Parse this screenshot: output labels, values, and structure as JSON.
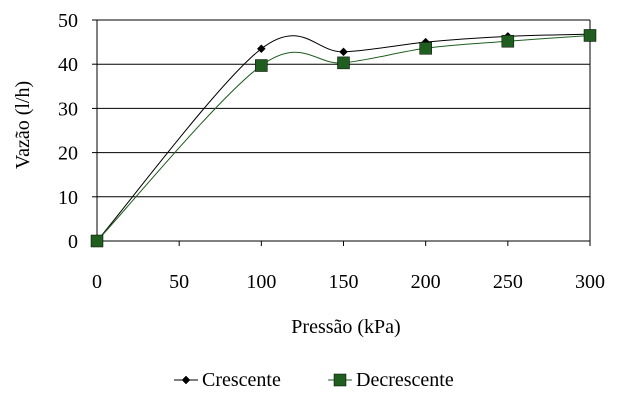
{
  "chart_data": {
    "type": "line",
    "title": "",
    "xlabel": "Pressão (kPa)",
    "ylabel": "Vazão (l/h)",
    "x": [
      0,
      100,
      150,
      200,
      250,
      300
    ],
    "xlim": [
      0,
      300
    ],
    "ylim": [
      0,
      50
    ],
    "xticks": [
      0,
      50,
      100,
      150,
      200,
      250,
      300
    ],
    "yticks": [
      0,
      10,
      20,
      30,
      40,
      50
    ],
    "xtick_labels": [
      "0",
      "50",
      "100",
      "150",
      "200",
      "250",
      "300"
    ],
    "ytick_labels": [
      "0",
      "10",
      "20",
      "30",
      "40",
      "50"
    ],
    "grid": "horizontal",
    "legend_position": "bottom",
    "series": [
      {
        "name": "Crescente",
        "marker": "diamond",
        "values": [
          0,
          43.5,
          42.8,
          45.0,
          46.3,
          46.8
        ],
        "color": "#000000"
      },
      {
        "name": "Decrescente",
        "marker": "square",
        "values": [
          0,
          39.7,
          40.3,
          43.6,
          45.2,
          46.5
        ],
        "color": "#1f5e1f"
      }
    ]
  }
}
